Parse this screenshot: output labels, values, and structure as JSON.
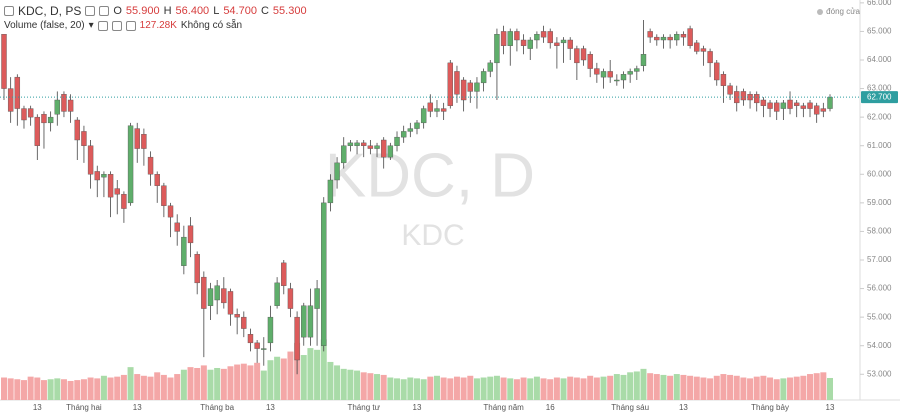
{
  "chart_data": {
    "type": "candlestick",
    "title": "KDC, D, PS",
    "watermark": "KDC, D",
    "watermark_sub": "KDC",
    "close_toggle": "đóng cửa",
    "legend": {
      "o_label": "O",
      "o": {
        "value": 55.9,
        "label": "55.900"
      },
      "h_label": "H",
      "h": {
        "value": 56.4,
        "label": "56.400"
      },
      "l_label": "L",
      "l": {
        "value": 54.7,
        "label": "54.700"
      },
      "c_label": "C",
      "c": {
        "value": 55.3,
        "label": "55.300"
      }
    },
    "volume_title": "Volume (false, 20)",
    "volume_status": "Không có sẵn",
    "last_price": {
      "value": 62.7,
      "label": "62.700"
    },
    "up_color": "#5fae6b",
    "down_color": "#dc5b5b",
    "up_volume_color": "#a9dba8",
    "down_volume_color": "#f4a7a7",
    "price_line_color": "#2e9ea0",
    "grid": false,
    "ylim": [
      52.1,
      66.1
    ],
    "yticks": [
      {
        "value": 53,
        "label": "53.000"
      },
      {
        "value": 54,
        "label": "54.000"
      },
      {
        "value": 55,
        "label": "55.000"
      },
      {
        "value": 56,
        "label": "56.000"
      },
      {
        "value": 57,
        "label": "57.000"
      },
      {
        "value": 58,
        "label": "58.000"
      },
      {
        "value": 59,
        "label": "59.000"
      },
      {
        "value": 60,
        "label": "60.000"
      },
      {
        "value": 61,
        "label": "61.000"
      },
      {
        "value": 62,
        "label": "62.000"
      },
      {
        "value": 63,
        "label": "63.000"
      },
      {
        "value": 64,
        "label": "64.000"
      },
      {
        "value": 65,
        "label": "65.000"
      },
      {
        "value": 66,
        "label": "66.000"
      }
    ],
    "categories": [
      null,
      null,
      null,
      null,
      null,
      "13",
      null,
      null,
      null,
      null,
      null,
      null,
      "Tháng hai",
      null,
      null,
      null,
      null,
      null,
      null,
      null,
      "13",
      null,
      null,
      null,
      null,
      null,
      null,
      null,
      null,
      null,
      null,
      null,
      "Tháng ba",
      null,
      null,
      null,
      null,
      null,
      null,
      null,
      "13",
      null,
      null,
      null,
      null,
      null,
      null,
      null,
      null,
      null,
      null,
      null,
      null,
      null,
      "Tháng tư",
      null,
      null,
      null,
      null,
      null,
      null,
      null,
      "13",
      null,
      null,
      null,
      null,
      null,
      null,
      null,
      null,
      null,
      null,
      null,
      null,
      "Tháng năm",
      null,
      null,
      null,
      null,
      null,
      null,
      "16",
      null,
      null,
      null,
      null,
      null,
      null,
      null,
      null,
      null,
      null,
      null,
      "Tháng sáu",
      null,
      null,
      null,
      null,
      null,
      null,
      null,
      "13",
      null,
      null,
      null,
      null,
      null,
      null,
      null,
      null,
      null,
      null,
      null,
      null,
      "Tháng bảy",
      null,
      null,
      null,
      null,
      null,
      null,
      null,
      null,
      "13"
    ],
    "ohlc": [
      [
        64.9,
        64.9,
        62.6,
        63.0
      ],
      [
        63.0,
        63.4,
        61.8,
        62.2
      ],
      [
        63.4,
        63.5,
        61.7,
        62.3
      ],
      [
        62.3,
        62.4,
        61.6,
        61.9
      ],
      [
        62.3,
        62.4,
        61.7,
        62.0
      ],
      [
        62.0,
        62.1,
        60.5,
        61.0
      ],
      [
        62.1,
        62.2,
        60.9,
        61.8
      ],
      [
        61.8,
        62.2,
        61.5,
        62.0
      ],
      [
        62.1,
        62.9,
        61.7,
        62.6
      ],
      [
        62.8,
        62.9,
        62.0,
        62.2
      ],
      [
        62.6,
        62.8,
        61.8,
        62.2
      ],
      [
        61.9,
        62.0,
        60.5,
        61.2
      ],
      [
        61.5,
        61.7,
        60.4,
        61.0
      ],
      [
        61.0,
        61.2,
        59.5,
        60.0
      ],
      [
        60.1,
        60.3,
        59.2,
        59.8
      ],
      [
        59.9,
        60.1,
        59.2,
        60.0
      ],
      [
        60.0,
        60.1,
        58.5,
        59.2
      ],
      [
        59.5,
        59.8,
        58.6,
        59.3
      ],
      [
        59.3,
        59.4,
        58.3,
        58.8
      ],
      [
        59.0,
        61.8,
        58.9,
        61.7
      ],
      [
        61.6,
        61.8,
        60.4,
        60.9
      ],
      [
        61.4,
        61.6,
        60.3,
        60.9
      ],
      [
        60.6,
        60.8,
        59.6,
        60.0
      ],
      [
        60.0,
        60.1,
        59.0,
        59.6
      ],
      [
        59.6,
        59.7,
        58.5,
        58.9
      ],
      [
        58.9,
        59.0,
        57.8,
        58.5
      ],
      [
        58.3,
        58.6,
        57.5,
        58.0
      ],
      [
        56.8,
        58.2,
        56.5,
        57.8
      ],
      [
        58.2,
        58.5,
        57.1,
        57.6
      ],
      [
        57.2,
        57.3,
        55.8,
        56.2
      ],
      [
        56.4,
        56.6,
        53.6,
        55.3
      ],
      [
        55.4,
        56.2,
        54.9,
        56.0
      ],
      [
        55.6,
        56.3,
        55.1,
        56.1
      ],
      [
        56.0,
        56.4,
        55.3,
        55.5
      ],
      [
        55.9,
        56.0,
        54.7,
        55.1
      ],
      [
        55.1,
        55.3,
        54.4,
        55.0
      ],
      [
        55.0,
        55.2,
        54.3,
        54.6
      ],
      [
        54.4,
        54.6,
        53.8,
        54.1
      ],
      [
        54.1,
        54.2,
        53.4,
        53.9
      ],
      [
        53.9,
        54.3,
        53.3,
        53.9
      ],
      [
        54.1,
        55.4,
        53.8,
        55.0
      ],
      [
        55.4,
        56.4,
        55.3,
        56.2
      ],
      [
        56.9,
        57.0,
        55.8,
        56.1
      ],
      [
        56.0,
        56.2,
        55.0,
        55.3
      ],
      [
        55.0,
        55.2,
        53.0,
        53.5
      ],
      [
        54.3,
        55.5,
        54.0,
        55.4
      ],
      [
        54.3,
        56.0,
        54.0,
        55.4
      ],
      [
        55.3,
        56.3,
        54.0,
        56.0
      ],
      [
        54.0,
        59.2,
        53.8,
        59.0
      ],
      [
        59.0,
        60.0,
        58.7,
        59.8
      ],
      [
        59.8,
        60.6,
        59.5,
        60.4
      ],
      [
        60.4,
        61.3,
        60.2,
        61.0
      ],
      [
        61.0,
        61.2,
        60.8,
        61.1
      ],
      [
        61.0,
        61.2,
        60.7,
        61.1
      ],
      [
        61.1,
        61.2,
        60.6,
        61.0
      ],
      [
        61.0,
        61.2,
        60.7,
        60.9
      ],
      [
        60.9,
        61.1,
        60.6,
        61.0
      ],
      [
        61.2,
        61.3,
        60.2,
        60.6
      ],
      [
        60.6,
        61.1,
        60.5,
        61.0
      ],
      [
        61.0,
        61.5,
        60.8,
        61.3
      ],
      [
        61.3,
        61.7,
        61.1,
        61.5
      ],
      [
        61.5,
        61.8,
        61.3,
        61.6
      ],
      [
        61.6,
        61.9,
        61.4,
        61.8
      ],
      [
        61.8,
        62.4,
        61.6,
        62.3
      ],
      [
        62.5,
        62.8,
        62.0,
        62.2
      ],
      [
        62.2,
        62.6,
        62.0,
        62.3
      ],
      [
        62.3,
        62.5,
        61.9,
        62.2
      ],
      [
        63.9,
        64.0,
        62.3,
        62.4
      ],
      [
        63.6,
        63.8,
        62.5,
        62.8
      ],
      [
        63.3,
        63.4,
        62.2,
        62.6
      ],
      [
        63.2,
        63.3,
        62.5,
        62.9
      ],
      [
        62.9,
        63.4,
        62.3,
        63.2
      ],
      [
        63.2,
        63.7,
        62.9,
        63.6
      ],
      [
        63.6,
        64.0,
        63.4,
        63.9
      ],
      [
        63.9,
        65.1,
        62.6,
        64.9
      ],
      [
        65.0,
        65.2,
        64.2,
        64.5
      ],
      [
        64.5,
        65.1,
        63.8,
        65.0
      ],
      [
        65.0,
        65.1,
        64.3,
        64.7
      ],
      [
        64.7,
        64.9,
        64.2,
        64.5
      ],
      [
        64.4,
        64.8,
        64.0,
        64.7
      ],
      [
        64.7,
        65.0,
        64.4,
        64.9
      ],
      [
        65.0,
        65.2,
        64.6,
        64.8
      ],
      [
        65.0,
        65.1,
        64.4,
        64.6
      ],
      [
        64.6,
        64.8,
        63.7,
        64.5
      ],
      [
        64.6,
        64.8,
        63.9,
        64.7
      ],
      [
        64.7,
        64.8,
        64.0,
        64.4
      ],
      [
        64.4,
        64.5,
        63.3,
        63.9
      ],
      [
        64.4,
        64.5,
        63.8,
        64.0
      ],
      [
        64.2,
        64.3,
        63.4,
        63.7
      ],
      [
        63.7,
        63.9,
        63.2,
        63.5
      ],
      [
        63.4,
        63.7,
        63.0,
        63.6
      ],
      [
        63.6,
        64.0,
        63.2,
        63.4
      ],
      [
        63.3,
        63.5,
        63.1,
        63.3
      ],
      [
        63.3,
        63.6,
        63.0,
        63.5
      ],
      [
        63.5,
        63.7,
        63.2,
        63.6
      ],
      [
        63.6,
        63.8,
        63.3,
        63.7
      ],
      [
        63.8,
        65.4,
        63.6,
        64.2
      ],
      [
        65.0,
        65.1,
        64.6,
        64.8
      ],
      [
        64.8,
        64.9,
        64.5,
        64.7
      ],
      [
        64.7,
        64.9,
        64.4,
        64.8
      ],
      [
        64.8,
        64.9,
        64.4,
        64.7
      ],
      [
        64.7,
        65.0,
        64.5,
        64.9
      ],
      [
        64.9,
        65.0,
        64.5,
        64.8
      ],
      [
        65.1,
        65.2,
        64.4,
        64.5
      ],
      [
        64.6,
        64.7,
        64.2,
        64.3
      ],
      [
        64.4,
        64.5,
        63.8,
        64.3
      ],
      [
        64.3,
        64.4,
        63.4,
        63.9
      ],
      [
        63.9,
        64.0,
        63.1,
        63.3
      ],
      [
        63.5,
        63.6,
        62.5,
        63.1
      ],
      [
        63.1,
        63.2,
        62.6,
        62.8
      ],
      [
        62.9,
        63.1,
        62.2,
        62.5
      ],
      [
        62.9,
        63.0,
        62.4,
        62.6
      ],
      [
        62.8,
        62.9,
        62.3,
        62.6
      ],
      [
        62.8,
        62.9,
        62.2,
        62.5
      ],
      [
        62.6,
        62.7,
        62.0,
        62.4
      ],
      [
        62.5,
        62.6,
        62.0,
        62.3
      ],
      [
        62.5,
        62.6,
        61.9,
        62.2
      ],
      [
        62.3,
        62.6,
        61.9,
        62.5
      ],
      [
        62.6,
        62.9,
        62.1,
        62.3
      ],
      [
        62.5,
        62.6,
        62.0,
        62.4
      ],
      [
        62.4,
        62.5,
        62.0,
        62.3
      ],
      [
        62.5,
        62.6,
        62.0,
        62.3
      ],
      [
        62.4,
        62.5,
        61.8,
        62.1
      ],
      [
        62.3,
        62.5,
        62.0,
        62.2
      ],
      [
        62.3,
        62.8,
        62.2,
        62.7
      ]
    ],
    "volume": [
      130,
      125,
      120,
      115,
      135,
      130,
      115,
      120,
      125,
      120,
      110,
      115,
      120,
      130,
      125,
      140,
      130,
      135,
      145,
      190,
      150,
      140,
      135,
      160,
      145,
      130,
      150,
      175,
      190,
      185,
      200,
      175,
      185,
      180,
      195,
      205,
      210,
      200,
      215,
      170,
      230,
      250,
      240,
      280,
      330,
      260,
      300,
      290,
      350,
      220,
      200,
      180,
      175,
      170,
      160,
      155,
      150,
      145,
      130,
      125,
      120,
      130,
      125,
      120,
      135,
      140,
      130,
      125,
      135,
      130,
      140,
      125,
      130,
      135,
      140,
      130,
      125,
      120,
      130,
      125,
      135,
      125,
      120,
      130,
      125,
      135,
      130,
      125,
      140,
      130,
      135,
      140,
      150,
      145,
      160,
      165,
      180,
      155,
      150,
      145,
      140,
      150,
      145,
      140,
      135,
      130,
      125,
      140,
      150,
      145,
      140,
      130,
      125,
      135,
      140,
      130,
      120,
      125,
      130,
      135,
      140,
      150,
      155,
      160,
      127.28
    ],
    "volume_value_labels": {
      "124": "127.28K"
    }
  }
}
